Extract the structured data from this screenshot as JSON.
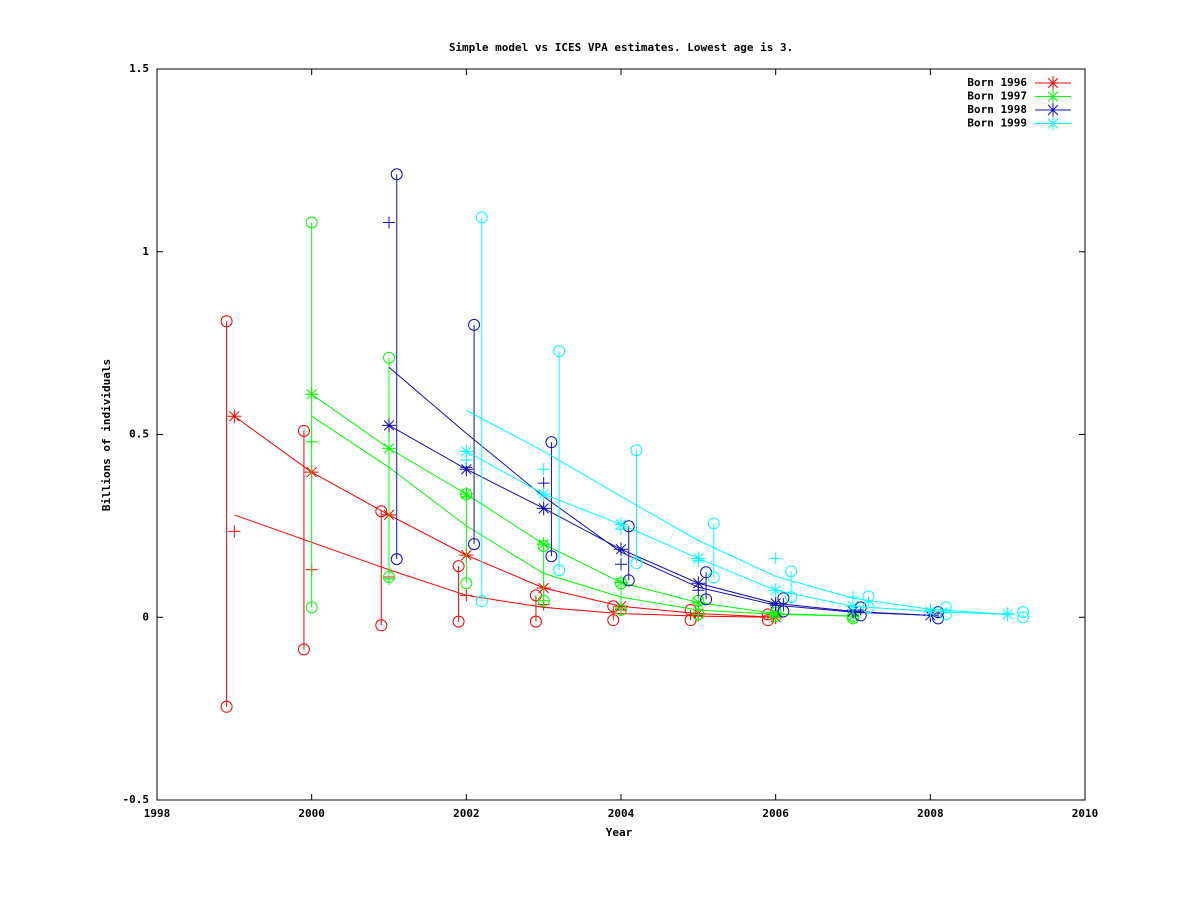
{
  "chart_data": {
    "type": "line",
    "title": "Simple model vs ICES VPA estimates. Lowest age is 3.",
    "x_label": "Year",
    "y_label": "Billions of individuals",
    "xlim": [
      1998,
      2010
    ],
    "xticks": [
      1998,
      2000,
      2002,
      2004,
      2006,
      2008,
      2010
    ],
    "ylim": [
      -0.5,
      1.5
    ],
    "yticks": [
      -0.5,
      0,
      0.5,
      1,
      1.5
    ],
    "legend": "top-right",
    "series": [
      {
        "name": "Born 1996",
        "color": "#ff0000",
        "x": [
          1999,
          2000,
          2001,
          2002,
          2003,
          2004,
          2005,
          2006
        ],
        "values": [
          0.55,
          0.397,
          0.28,
          0.17,
          0.08,
          0.03,
          0.01,
          0.0
        ],
        "model": [
          0.28,
          0.205,
          0.13,
          0.06,
          0.027,
          0.01,
          0.003,
          0.0
        ],
        "plus": [
          0.235,
          0.13,
          0.11,
          0.06,
          0.035,
          0.02,
          0.005,
          0.0
        ],
        "error_x": [
          1998.9,
          1999.9,
          2000.9,
          2001.9,
          2002.9,
          2003.9,
          2004.9,
          2005.9
        ],
        "low": [
          -0.245,
          -0.088,
          -0.022,
          -0.012,
          -0.012,
          -0.008,
          -0.008,
          -0.008
        ],
        "high": [
          0.81,
          0.51,
          0.29,
          0.14,
          0.06,
          0.03,
          0.02,
          0.008
        ]
      },
      {
        "name": "Born 1997",
        "color": "#00ff00",
        "x": [
          2000,
          2001,
          2002,
          2003,
          2004,
          2005,
          2006,
          2007
        ],
        "values": [
          0.61,
          0.462,
          0.337,
          0.2,
          0.095,
          0.04,
          0.01,
          0.003
        ],
        "model": [
          0.55,
          0.41,
          0.25,
          0.12,
          0.055,
          0.02,
          0.008,
          0.003
        ],
        "plus": [
          0.48,
          0.105,
          0.33,
          0.045,
          0.025,
          0.008,
          0.005,
          0.003
        ],
        "error_x": [
          2000,
          2001,
          2002,
          2003,
          2004,
          2005,
          2006,
          2007
        ],
        "low": [
          0.027,
          0.11,
          0.093,
          0.045,
          0.02,
          0.008,
          0.003,
          -0.003
        ],
        "high": [
          1.08,
          0.71,
          0.337,
          0.195,
          0.093,
          0.045,
          0.013,
          0.003
        ]
      },
      {
        "name": "Born 1998",
        "color": "#1010b0",
        "x": [
          2001,
          2002,
          2003,
          2004,
          2005,
          2006,
          2007,
          2008
        ],
        "values": [
          0.525,
          0.405,
          0.298,
          0.186,
          0.093,
          0.038,
          0.016,
          0.005
        ],
        "model": [
          0.684,
          0.503,
          0.33,
          0.178,
          0.082,
          0.033,
          0.014,
          0.005
        ],
        "plus": [
          1.08,
          0.41,
          0.367,
          0.145,
          0.074,
          0.033,
          0.02,
          0.005
        ],
        "error_x": [
          2001.1,
          2002.1,
          2003.1,
          2004.1,
          2005.1,
          2006.1,
          2007.1,
          2008.1
        ],
        "low": [
          0.159,
          0.2,
          0.167,
          0.101,
          0.049,
          0.016,
          0.005,
          -0.003
        ],
        "high": [
          1.212,
          0.8,
          0.479,
          0.249,
          0.123,
          0.052,
          0.027,
          0.014
        ]
      },
      {
        "name": "Born 1999",
        "color": "#00ffff",
        "x": [
          2002,
          2003,
          2004,
          2005,
          2006,
          2007,
          2008,
          2009
        ],
        "values": [
          0.454,
          0.337,
          0.254,
          0.161,
          0.074,
          0.03,
          0.016,
          0.008
        ],
        "model": [
          0.566,
          0.454,
          0.331,
          0.21,
          0.112,
          0.052,
          0.022,
          0.008
        ],
        "plus": [
          0.43,
          0.405,
          0.241,
          0.155,
          0.161,
          0.055,
          0.022,
          0.011
        ],
        "error_x": [
          2002.2,
          2003.2,
          2004.2,
          2005.2,
          2006.2,
          2007.2,
          2008.2,
          2009.2
        ],
        "low": [
          0.044,
          0.129,
          0.148,
          0.109,
          0.055,
          0.027,
          0.008,
          0.0
        ],
        "high": [
          1.094,
          0.728,
          0.457,
          0.257,
          0.126,
          0.057,
          0.027,
          0.014
        ]
      }
    ]
  }
}
